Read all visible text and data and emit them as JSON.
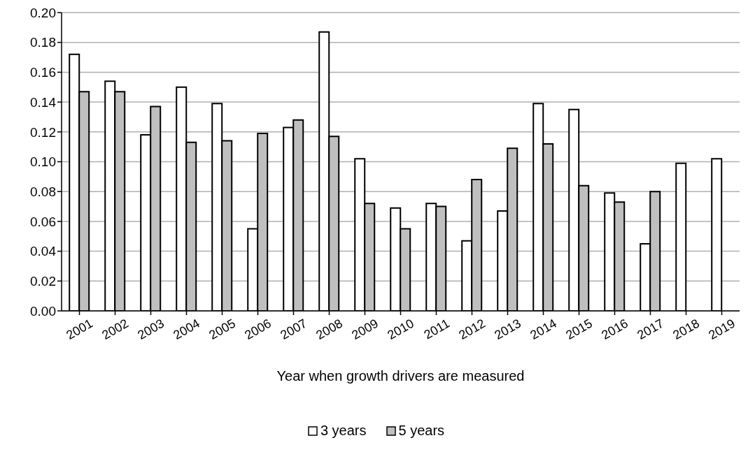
{
  "chart_data": {
    "type": "bar",
    "xlabel": "Year when growth drivers are measured",
    "categories": [
      "2001",
      "2002",
      "2003",
      "2004",
      "2005",
      "2006",
      "2007",
      "2008",
      "2009",
      "2010",
      "2011",
      "2012",
      "2013",
      "2014",
      "2015",
      "2016",
      "2017",
      "2018",
      "2019"
    ],
    "series": [
      {
        "name": "3 years",
        "color": "#ffffff",
        "values": [
          0.172,
          0.154,
          0.118,
          0.15,
          0.139,
          0.055,
          0.123,
          0.187,
          0.102,
          0.069,
          0.072,
          0.047,
          0.067,
          0.139,
          0.135,
          0.079,
          0.045,
          0.099,
          0.102
        ]
      },
      {
        "name": "5 years",
        "color": "#bfbfbf",
        "values": [
          0.147,
          0.147,
          0.137,
          0.113,
          0.114,
          0.119,
          0.128,
          0.117,
          0.072,
          0.055,
          0.07,
          0.088,
          0.109,
          0.112,
          0.084,
          0.073,
          0.08,
          null,
          null
        ]
      }
    ],
    "ylim": [
      0,
      0.2
    ],
    "yticks": [
      {
        "value": 0,
        "label": "0.00"
      },
      {
        "value": 0.02,
        "label": "0.02"
      },
      {
        "value": 0.04,
        "label": "0.04"
      },
      {
        "value": 0.06,
        "label": "0.06"
      },
      {
        "value": 0.08,
        "label": "0.08"
      },
      {
        "value": 0.1,
        "label": "0.10"
      },
      {
        "value": 0.12,
        "label": "0.12"
      },
      {
        "value": 0.14,
        "label": "0.14"
      },
      {
        "value": 0.16,
        "label": "0.16"
      },
      {
        "value": 0.18,
        "label": "0.18"
      },
      {
        "value": 0.2,
        "label": "0.20"
      }
    ],
    "grid": "y",
    "legend": "bottom"
  }
}
